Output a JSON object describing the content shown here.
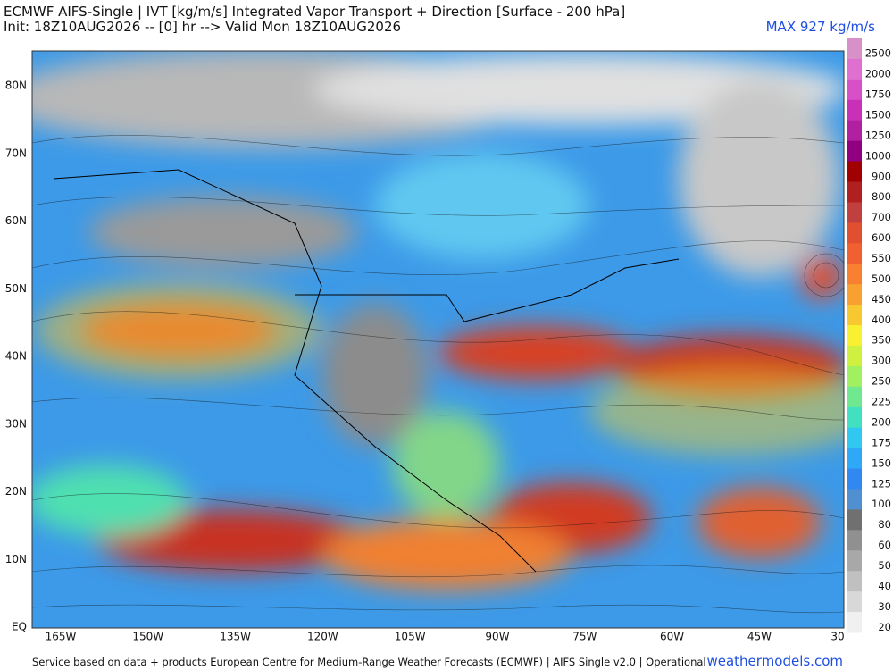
{
  "header": {
    "title": "ECMWF AIFS-Single | IVT [kg/m/s] Integrated Vapor Transport + Direction [Surface - 200 hPa]",
    "subtitle": "Init: 18Z10AUG2026 -- [0] hr --> Valid Mon 18Z10AUG2026",
    "max": "MAX 927 kg/m/s"
  },
  "map": {
    "lat_labels": [
      "80N",
      "70N",
      "60N",
      "50N",
      "40N",
      "30N",
      "20N",
      "10N",
      "EQ"
    ],
    "lon_labels": [
      "165W",
      "150W",
      "135W",
      "120W",
      "105W",
      "90W",
      "75W",
      "60W",
      "45W",
      "30"
    ]
  },
  "colorbar": {
    "levels": [
      2500,
      2000,
      1750,
      1500,
      1250,
      1000,
      900,
      800,
      700,
      600,
      550,
      500,
      450,
      400,
      350,
      300,
      250,
      225,
      200,
      175,
      150,
      125,
      100,
      80,
      60,
      50,
      40,
      30,
      20
    ],
    "colors": [
      "#d890c8",
      "#e070d0",
      "#d850c8",
      "#c830b8",
      "#b020a0",
      "#900080",
      "#a00000",
      "#b02020",
      "#c04040",
      "#e05030",
      "#f06030",
      "#f88030",
      "#f8a030",
      "#f8c830",
      "#f8f030",
      "#d0f040",
      "#a0f060",
      "#70e890",
      "#40e0c0",
      "#30c8f0",
      "#30a8f8",
      "#3088f0",
      "#5090d0",
      "#707070",
      "#909090",
      "#a8a8a8",
      "#c0c0c0",
      "#d8d8d8",
      "#f0f0f0"
    ]
  },
  "footer": {
    "credit": "Service based on data + products European Centre for Medium-Range Weather Forecasts (ECMWF) | AIFS Single v2.0 | Operational",
    "site": "weathermodels.com"
  }
}
